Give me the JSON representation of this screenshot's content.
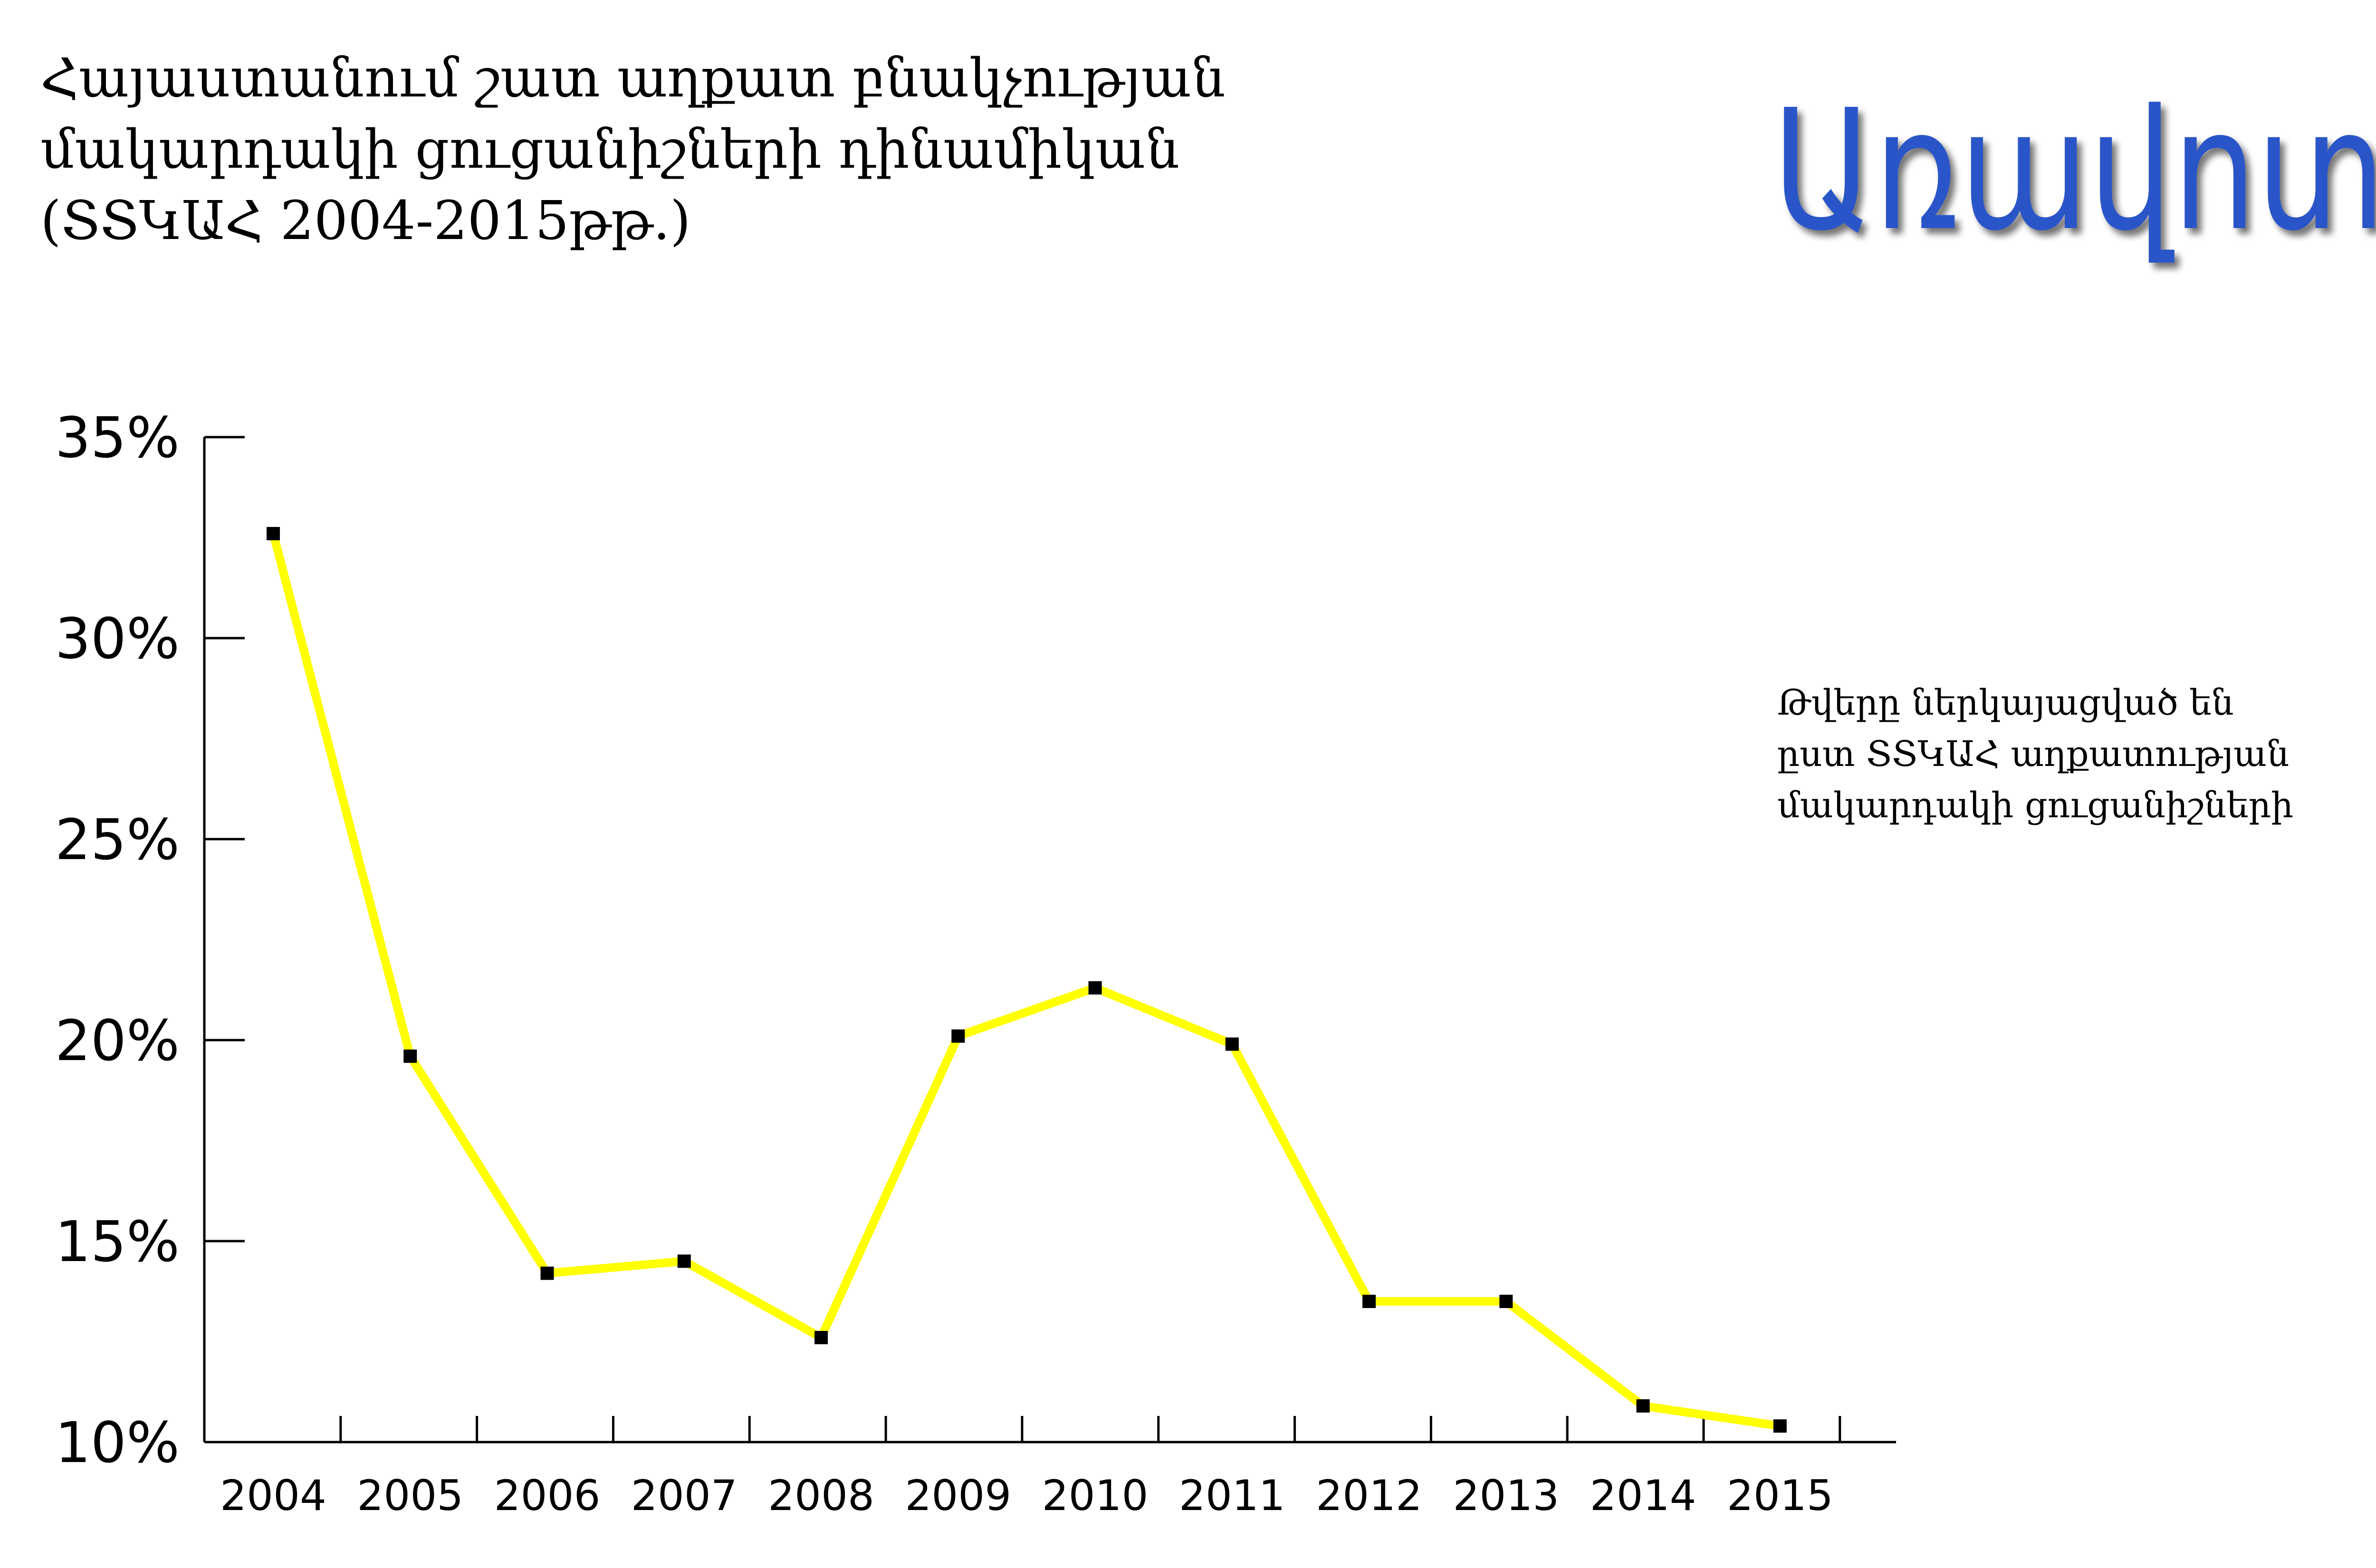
{
  "header": {
    "title_lines": [
      "Հայաստանում շատ աղքատ բնակչության",
      "մակարդակի ցուցանիշների դինամիկան",
      "(ՏՏԿԱՀ 2004-2015թթ.)"
    ]
  },
  "logo": {
    "text": "Առավոտ",
    "color": "#2a55c8"
  },
  "note": {
    "lines": [
      "Թվերը ներկայացված են",
      "ըստ ՏՏԿԱՀ աղքատության",
      "մակարդակի ցուցանիշների"
    ]
  },
  "chart_data": {
    "type": "line",
    "title": "",
    "xlabel": "",
    "ylabel": "",
    "categories": [
      "2004",
      "2005",
      "2006",
      "2007",
      "2008",
      "2009",
      "2010",
      "2011",
      "2012",
      "2013",
      "2014",
      "2015"
    ],
    "series": [
      {
        "values": [
          32.6,
          19.6,
          14.2,
          14.5,
          12.6,
          20.1,
          21.3,
          19.9,
          13.5,
          13.5,
          10.9,
          10.4
        ]
      }
    ],
    "ylim": [
      10,
      35
    ],
    "yticks": [
      10,
      15,
      20,
      25,
      30,
      35
    ],
    "ytick_labels": [
      "10%",
      "15%",
      "20%",
      "25%",
      "30%",
      "35%"
    ],
    "grid": false,
    "line_color": "#ffff00",
    "marker_color": "#000000"
  }
}
